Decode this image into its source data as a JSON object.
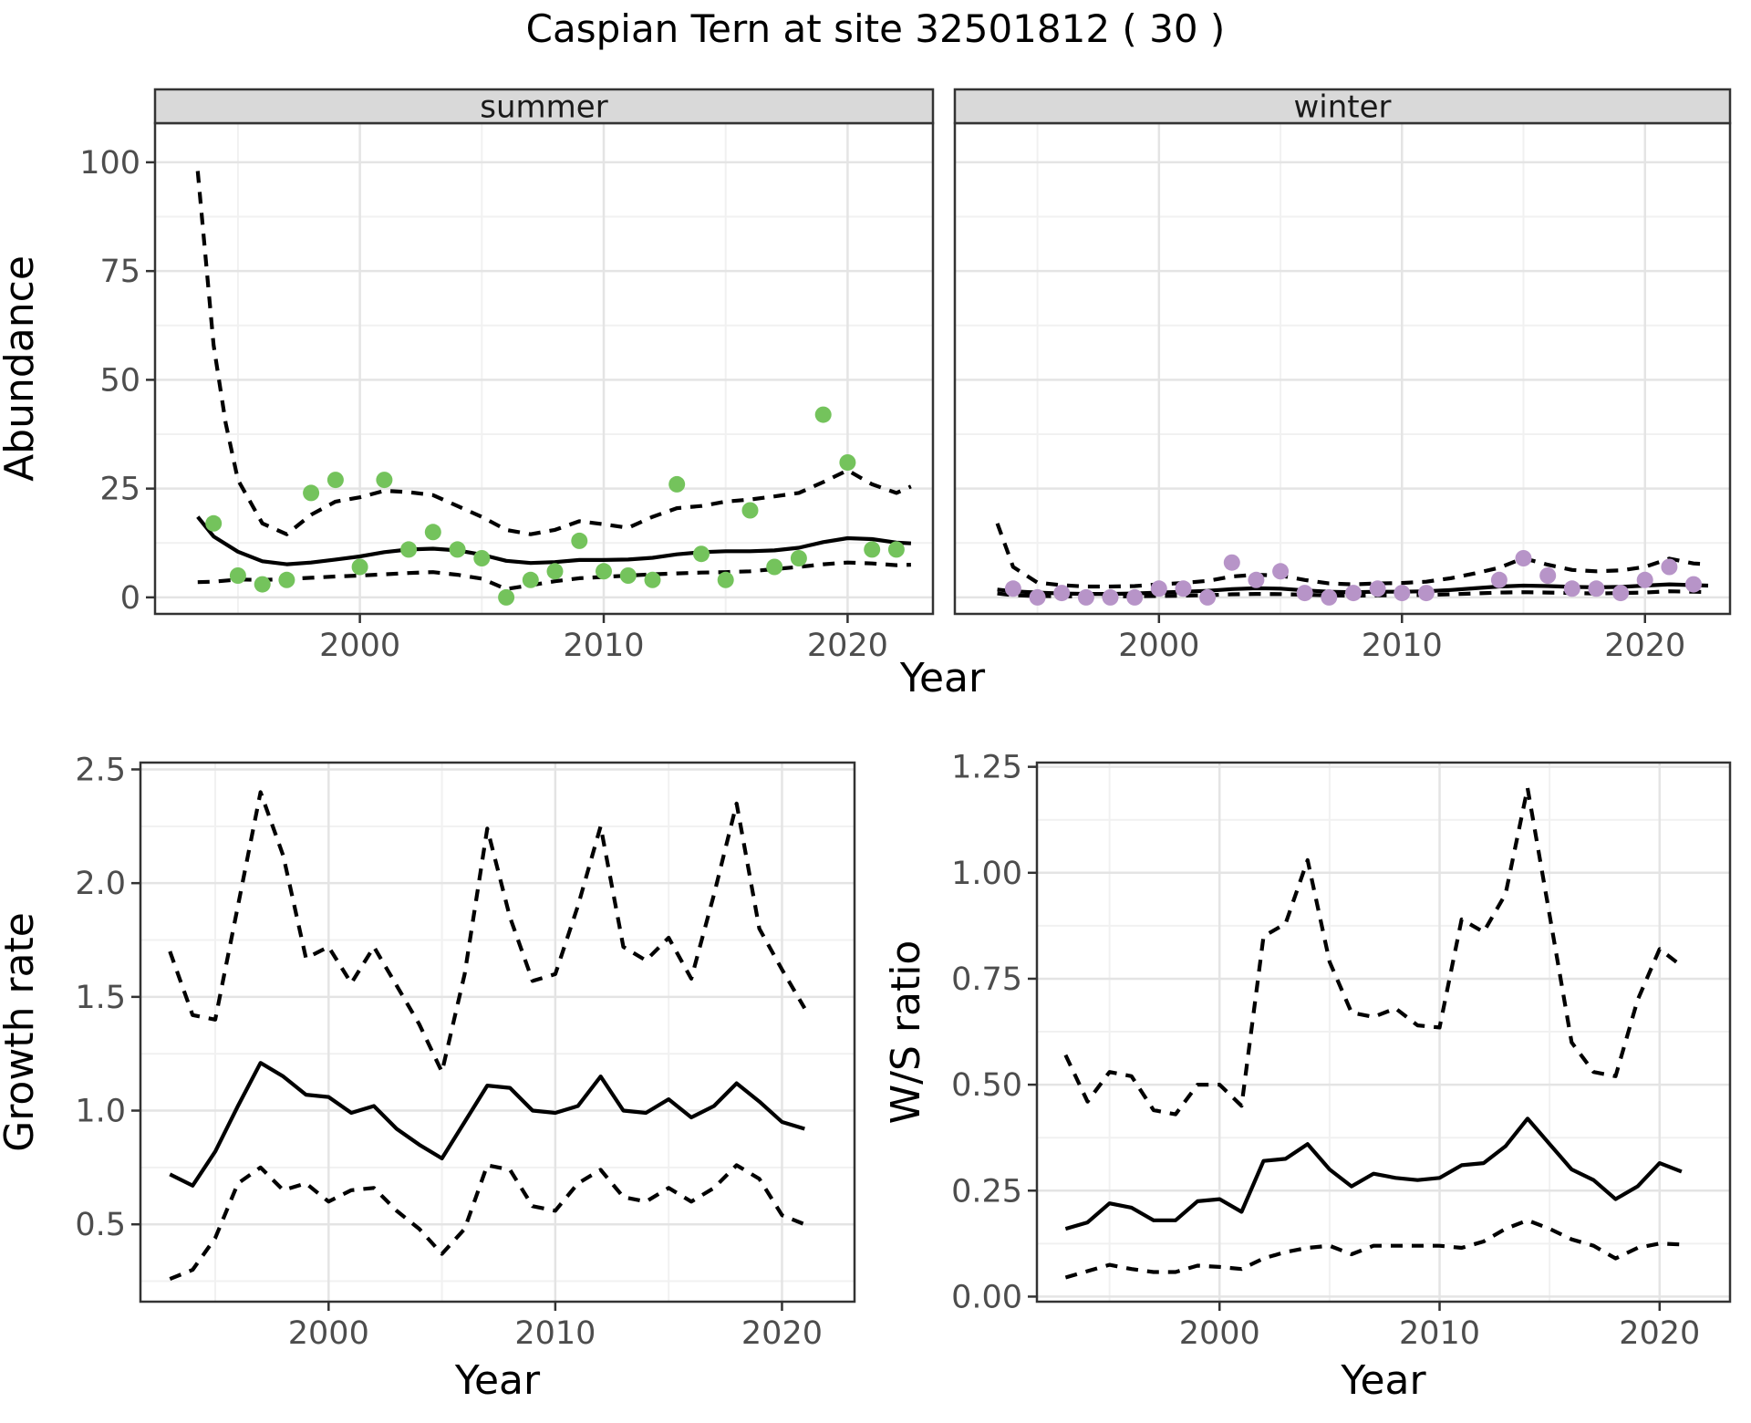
{
  "title": "Caspian Tern at site 32501812 ( 30 )",
  "colors": {
    "summer_point": "#74c35c",
    "winter_point": "#b794c8",
    "line": "#000000",
    "strip_bg": "#d9d9d9",
    "strip_text": "#1a1a1a",
    "panel_border": "#333333",
    "panel_bg": "#ffffff",
    "grid_major": "#e4e4e4",
    "grid_minor": "#f1f1f1",
    "tick_label": "#4d4d4d",
    "axis_title": "#000000"
  },
  "chart_data": [
    {
      "id": "abundance-summer",
      "type": "scatter",
      "facet_label": "summer",
      "xlabel": "Year",
      "ylabel": "Abundance",
      "xlim": [
        1991.6,
        2023.5
      ],
      "ylim": [
        -3.8,
        109
      ],
      "xticks": [
        2000,
        2010,
        2020
      ],
      "xtick_labels": [
        "2000",
        "2010",
        "2020"
      ],
      "xticks_minor": [
        1995,
        2005,
        2015
      ],
      "yticks": [
        0,
        25,
        50,
        75,
        100
      ],
      "ytick_labels": [
        "0",
        "25",
        "50",
        "75",
        "100"
      ],
      "yticks_minor": [
        12.5,
        37.5,
        62.5,
        87.5
      ],
      "legend": "none",
      "grid": true,
      "points": {
        "x": [
          1994,
          1995,
          1996,
          1997,
          1998,
          1999,
          2000,
          2001,
          2002,
          2003,
          2004,
          2005,
          2006,
          2007,
          2008,
          2009,
          2010,
          2011,
          2012,
          2013,
          2014,
          2015,
          2016,
          2017,
          2018,
          2019,
          2020,
          2021,
          2022
        ],
        "y": [
          17,
          5,
          3,
          4,
          24,
          27,
          7,
          27,
          11,
          15,
          11,
          9,
          0,
          4,
          6,
          13,
          6,
          5,
          4,
          26,
          10,
          4,
          20,
          7,
          9,
          42,
          31,
          11,
          11
        ]
      },
      "fit": {
        "x": [
          1993.35,
          1994,
          1995,
          1996,
          1997,
          1998,
          1999,
          2000,
          2001,
          2002,
          2003,
          2004,
          2005,
          2006,
          2007,
          2008,
          2009,
          2010,
          2011,
          2012,
          2013,
          2014,
          2015,
          2016,
          2017,
          2018,
          2019,
          2020,
          2021,
          2022,
          2022.6
        ],
        "y": [
          18.5,
          14,
          10.5,
          8.3,
          7.6,
          8.0,
          8.7,
          9.4,
          10.4,
          11.0,
          11.2,
          10.8,
          9.8,
          8.4,
          7.9,
          8.1,
          8.6,
          8.6,
          8.7,
          9.1,
          9.9,
          10.4,
          10.6,
          10.6,
          10.8,
          11.4,
          12.7,
          13.6,
          13.4,
          12.6,
          12.4
        ]
      },
      "upper": {
        "x": [
          1993.35,
          1994,
          1994.5,
          1995,
          1996,
          1997,
          1998,
          1999,
          2000,
          2001,
          2002,
          2003,
          2004,
          2005,
          2006,
          2007,
          2008,
          2009,
          2010,
          2011,
          2012,
          2013,
          2014,
          2015,
          2016,
          2017,
          2018,
          2019,
          2020,
          2021,
          2022,
          2022.6
        ],
        "y": [
          98,
          58,
          40,
          27,
          17,
          14.5,
          19,
          22,
          23,
          24.5,
          24.2,
          23.5,
          21,
          18.5,
          15.5,
          14.5,
          15.5,
          17.5,
          16.8,
          16,
          18.5,
          20.5,
          21,
          22,
          22.5,
          23.2,
          24,
          26.5,
          29.2,
          26,
          24,
          25.5
        ]
      },
      "lower": {
        "x": [
          1993.35,
          1994,
          1995,
          1996,
          1997,
          1998,
          1999,
          2000,
          2001,
          2002,
          2003,
          2004,
          2005,
          2006,
          2007,
          2008,
          2009,
          2010,
          2011,
          2012,
          2013,
          2014,
          2015,
          2016,
          2017,
          2018,
          2019,
          2020,
          2021,
          2022,
          2022.6
        ],
        "y": [
          3.5,
          3.6,
          4.1,
          4.0,
          4.2,
          4.5,
          4.8,
          5.0,
          5.3,
          5.6,
          5.8,
          5.2,
          4.3,
          1.9,
          2.8,
          3.7,
          4.4,
          4.7,
          5.0,
          5.3,
          5.5,
          5.7,
          5.8,
          6.0,
          6.5,
          7.0,
          7.6,
          8.0,
          7.8,
          7.4,
          7.5
        ]
      }
    },
    {
      "id": "abundance-winter",
      "type": "scatter",
      "facet_label": "winter",
      "xlabel": "Year",
      "ylabel": null,
      "xlim": [
        1991.6,
        2023.5
      ],
      "ylim": [
        -3.8,
        109
      ],
      "xticks": [
        2000,
        2010,
        2020
      ],
      "xtick_labels": [
        "2000",
        "2010",
        "2020"
      ],
      "xticks_minor": [
        1995,
        2005,
        2015
      ],
      "yticks": [
        0,
        25,
        50,
        75,
        100
      ],
      "ytick_labels": [
        "0",
        "25",
        "50",
        "75",
        "100"
      ],
      "yticks_minor": [
        12.5,
        37.5,
        62.5,
        87.5
      ],
      "legend": "none",
      "grid": true,
      "points": {
        "x": [
          1994,
          1995,
          1996,
          1997,
          1998,
          1999,
          2000,
          2001,
          2002,
          2003,
          2004,
          2005,
          2006,
          2007,
          2008,
          2009,
          2010,
          2011,
          2014,
          2015,
          2016,
          2017,
          2018,
          2019,
          2020,
          2021,
          2022
        ],
        "y": [
          2,
          0,
          1,
          0,
          0,
          0,
          2,
          2,
          0,
          8,
          4,
          6,
          1,
          0,
          1,
          2,
          1,
          1,
          4,
          9,
          5,
          2,
          2,
          1,
          4,
          7,
          3
        ]
      },
      "fit": {
        "x": [
          1993.35,
          1994,
          1995,
          1996,
          1997,
          1998,
          1999,
          2000,
          2001,
          2002,
          2003,
          2004,
          2005,
          2006,
          2007,
          2008,
          2009,
          2010,
          2011,
          2012,
          2013,
          2014,
          2015,
          2016,
          2017,
          2018,
          2019,
          2020,
          2021,
          2022,
          2022.6
        ],
        "y": [
          1.8,
          1.4,
          1.1,
          0.9,
          0.8,
          0.8,
          0.9,
          1.1,
          1.3,
          1.5,
          1.9,
          2.1,
          2.0,
          1.6,
          1.3,
          1.2,
          1.3,
          1.3,
          1.4,
          1.7,
          2.1,
          2.5,
          2.7,
          2.6,
          2.4,
          2.3,
          2.4,
          2.7,
          3.0,
          2.8,
          2.7
        ]
      },
      "upper": {
        "x": [
          1993.35,
          1994,
          1995,
          1996,
          1997,
          1998,
          1999,
          2000,
          2001,
          2002,
          2003,
          2004,
          2005,
          2006,
          2007,
          2008,
          2009,
          2010,
          2011,
          2012,
          2013,
          2014,
          2015,
          2016,
          2017,
          2018,
          2019,
          2020,
          2021,
          2022,
          2022.6
        ],
        "y": [
          17,
          7,
          3.4,
          2.8,
          2.5,
          2.5,
          2.6,
          3.0,
          3.3,
          3.8,
          4.8,
          5.2,
          5.0,
          4.0,
          3.2,
          3.0,
          3.2,
          3.3,
          3.6,
          4.4,
          5.5,
          6.8,
          9.0,
          7.5,
          6.3,
          6.0,
          6.2,
          7.0,
          8.9,
          7.8,
          7.6
        ]
      },
      "lower": {
        "x": [
          1993.35,
          1994,
          1995,
          1996,
          1997,
          1998,
          1999,
          2000,
          2001,
          2002,
          2003,
          2004,
          2005,
          2006,
          2007,
          2008,
          2009,
          2010,
          2011,
          2012,
          2013,
          2014,
          2015,
          2016,
          2017,
          2018,
          2019,
          2020,
          2021,
          2022,
          2022.6
        ],
        "y": [
          0.9,
          0.5,
          0.3,
          0.25,
          0.2,
          0.2,
          0.25,
          0.3,
          0.4,
          0.5,
          0.7,
          0.8,
          0.75,
          0.6,
          0.45,
          0.4,
          0.45,
          0.5,
          0.55,
          0.7,
          0.9,
          1.1,
          1.2,
          1.1,
          1.0,
          0.9,
          1.0,
          1.1,
          1.4,
          1.3,
          1.2
        ]
      }
    },
    {
      "id": "growth-rate",
      "type": "line",
      "facet_label": null,
      "xlabel": "Year",
      "ylabel": "Growth rate",
      "xlim": [
        1991.7,
        2023.2
      ],
      "ylim": [
        0.16,
        2.53
      ],
      "xticks": [
        2000,
        2010,
        2020
      ],
      "xtick_labels": [
        "2000",
        "2010",
        "2020"
      ],
      "xticks_minor": [
        1995,
        2005,
        2015
      ],
      "yticks": [
        0.5,
        1.0,
        1.5,
        2.0,
        2.5
      ],
      "ytick_labels": [
        "0.5",
        "1.0",
        "1.5",
        "2.0",
        "2.5"
      ],
      "yticks_minor": [
        0.25,
        0.75,
        1.25,
        1.75,
        2.25
      ],
      "legend": "none",
      "grid": true,
      "fit": {
        "x": [
          1993,
          1994,
          1995,
          1996,
          1997,
          1998,
          1999,
          2000,
          2001,
          2002,
          2003,
          2004,
          2005,
          2006,
          2007,
          2008,
          2009,
          2010,
          2011,
          2012,
          2013,
          2014,
          2015,
          2016,
          2017,
          2018,
          2019,
          2020,
          2021
        ],
        "y": [
          0.72,
          0.67,
          0.82,
          1.02,
          1.21,
          1.15,
          1.07,
          1.06,
          0.99,
          1.02,
          0.92,
          0.85,
          0.79,
          0.95,
          1.11,
          1.1,
          1.0,
          0.99,
          1.02,
          1.15,
          1.0,
          0.99,
          1.05,
          0.97,
          1.02,
          1.12,
          1.04,
          0.95,
          0.92
        ]
      },
      "upper": {
        "x": [
          1993,
          1994,
          1995,
          1996,
          1997,
          1998,
          1999,
          2000,
          2001,
          2002,
          2003,
          2004,
          2005,
          2006,
          2007,
          2008,
          2009,
          2010,
          2011,
          2012,
          2013,
          2014,
          2015,
          2016,
          2017,
          2018,
          2019,
          2020,
          2021
        ],
        "y": [
          1.7,
          1.42,
          1.4,
          1.9,
          2.4,
          2.12,
          1.67,
          1.72,
          1.56,
          1.72,
          1.55,
          1.38,
          1.17,
          1.6,
          2.24,
          1.85,
          1.57,
          1.6,
          1.9,
          2.25,
          1.72,
          1.66,
          1.76,
          1.58,
          1.95,
          2.35,
          1.8,
          1.62,
          1.45
        ]
      },
      "lower": {
        "x": [
          1993,
          1994,
          1995,
          1996,
          1997,
          1998,
          1999,
          2000,
          2001,
          2002,
          2003,
          2004,
          2005,
          2006,
          2007,
          2008,
          2009,
          2010,
          2011,
          2012,
          2013,
          2014,
          2015,
          2016,
          2017,
          2018,
          2019,
          2020,
          2021
        ],
        "y": [
          0.26,
          0.3,
          0.44,
          0.68,
          0.75,
          0.65,
          0.68,
          0.6,
          0.65,
          0.66,
          0.56,
          0.48,
          0.37,
          0.48,
          0.76,
          0.74,
          0.58,
          0.56,
          0.68,
          0.74,
          0.62,
          0.6,
          0.66,
          0.6,
          0.66,
          0.76,
          0.7,
          0.54,
          0.5
        ]
      }
    },
    {
      "id": "ws-ratio",
      "type": "line",
      "facet_label": null,
      "xlabel": "Year",
      "ylabel": "W/S ratio",
      "xlim": [
        1991.7,
        2023.2
      ],
      "ylim": [
        -0.012,
        1.26
      ],
      "xticks": [
        2000,
        2010,
        2020
      ],
      "xtick_labels": [
        "2000",
        "2010",
        "2020"
      ],
      "xticks_minor": [
        1995,
        2005,
        2015
      ],
      "yticks": [
        0.0,
        0.25,
        0.5,
        0.75,
        1.0,
        1.25
      ],
      "ytick_labels": [
        "0.00",
        "0.25",
        "0.50",
        "0.75",
        "1.00",
        "1.25"
      ],
      "yticks_minor": [
        0.125,
        0.375,
        0.625,
        0.875,
        1.125
      ],
      "legend": "none",
      "grid": true,
      "fit": {
        "x": [
          1993,
          1994,
          1995,
          1996,
          1997,
          1998,
          1999,
          2000,
          2001,
          2002,
          2003,
          2004,
          2005,
          2006,
          2007,
          2008,
          2009,
          2010,
          2011,
          2012,
          2013,
          2014,
          2015,
          2016,
          2017,
          2018,
          2019,
          2020,
          2021
        ],
        "y": [
          0.16,
          0.175,
          0.22,
          0.21,
          0.18,
          0.18,
          0.225,
          0.23,
          0.2,
          0.32,
          0.325,
          0.36,
          0.3,
          0.26,
          0.29,
          0.28,
          0.275,
          0.28,
          0.31,
          0.315,
          0.355,
          0.42,
          0.36,
          0.3,
          0.275,
          0.23,
          0.26,
          0.315,
          0.295
        ]
      },
      "upper": {
        "x": [
          1993,
          1994,
          1995,
          1996,
          1997,
          1998,
          1999,
          2000,
          2001,
          2002,
          2003,
          2004,
          2005,
          2006,
          2007,
          2008,
          2009,
          2010,
          2011,
          2012,
          2013,
          2014,
          2015,
          2016,
          2017,
          2018,
          2019,
          2020,
          2021
        ],
        "y": [
          0.57,
          0.46,
          0.53,
          0.52,
          0.44,
          0.43,
          0.5,
          0.5,
          0.45,
          0.85,
          0.88,
          1.03,
          0.79,
          0.67,
          0.66,
          0.68,
          0.64,
          0.635,
          0.89,
          0.86,
          0.95,
          1.2,
          0.9,
          0.6,
          0.53,
          0.52,
          0.7,
          0.82,
          0.78
        ]
      },
      "lower": {
        "x": [
          1993,
          1994,
          1995,
          1996,
          1997,
          1998,
          1999,
          2000,
          2001,
          2002,
          2003,
          2004,
          2005,
          2006,
          2007,
          2008,
          2009,
          2010,
          2011,
          2012,
          2013,
          2014,
          2015,
          2016,
          2017,
          2018,
          2019,
          2020,
          2021
        ],
        "y": [
          0.045,
          0.06,
          0.075,
          0.065,
          0.058,
          0.058,
          0.073,
          0.07,
          0.065,
          0.09,
          0.105,
          0.115,
          0.12,
          0.1,
          0.12,
          0.12,
          0.12,
          0.12,
          0.115,
          0.13,
          0.16,
          0.18,
          0.16,
          0.135,
          0.12,
          0.09,
          0.115,
          0.125,
          0.123
        ]
      }
    }
  ]
}
